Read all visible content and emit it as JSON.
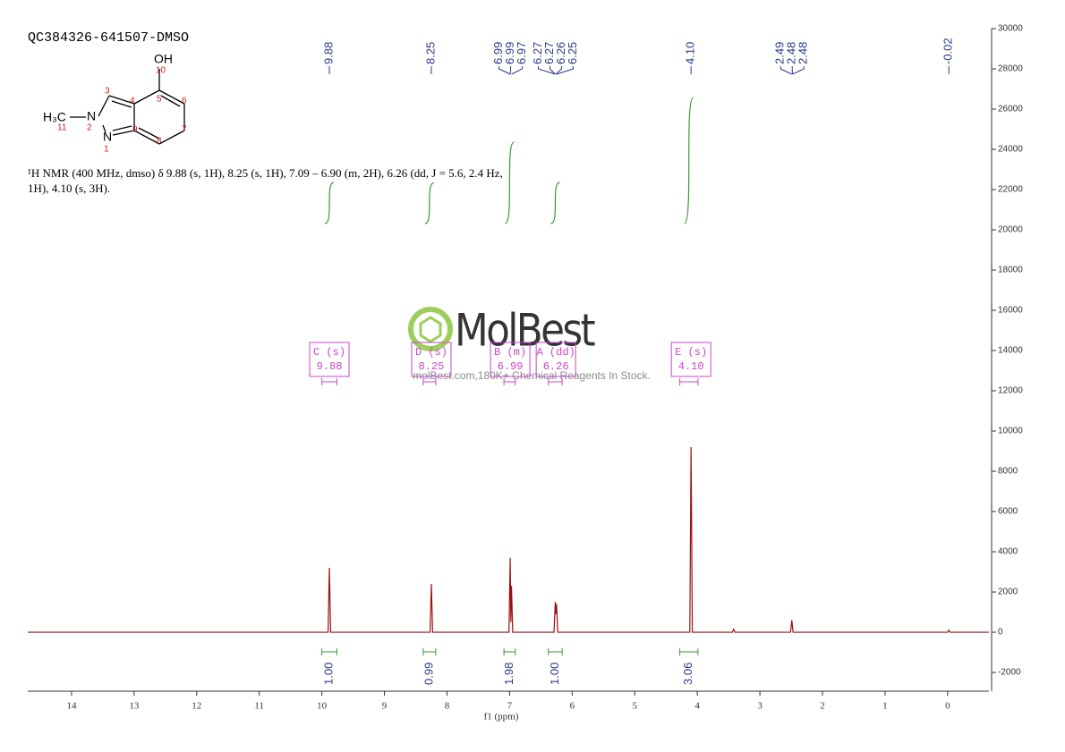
{
  "chart_data": {
    "type": "nmr",
    "title": "QC384326-641507-DMSO",
    "description_lines": [
      "¹H NMR (400 MHz, dmso) δ 9.88 (s, 1H), 8.25 (s, 1H), 7.09 – 6.90 (m, 2H), 6.26 (dd, J = 5.6, 2.4 Hz,",
      "1H), 4.10 (s, 3H)."
    ],
    "structure": {
      "labels": [
        "OH",
        "10",
        "5",
        "6",
        "3",
        "4",
        "H₃C",
        "11",
        "N",
        "2",
        "9",
        "7",
        "8",
        "N",
        "1"
      ]
    },
    "watermark": {
      "brand": "MolBest",
      "tagline": "molBest.com,180K+ Chemical Reagents In Stock."
    },
    "x_label": "f1 (ppm)",
    "xlim": [
      14.7,
      -0.66
    ],
    "xticks": [
      14,
      13,
      12,
      11,
      10,
      9,
      8,
      7,
      6,
      5,
      4,
      3,
      2,
      1,
      0
    ],
    "ylim": [
      -2930,
      30000
    ],
    "yticks": [
      -2000,
      0,
      2000,
      4000,
      6000,
      8000,
      10000,
      12000,
      14000,
      16000,
      18000,
      20000,
      22000,
      24000,
      26000,
      28000,
      30000
    ],
    "spectrum": {
      "color": "#9b1010",
      "x": [
        14.7,
        9.9,
        9.88,
        9.86,
        8.27,
        8.25,
        8.23,
        7.01,
        6.99,
        6.98,
        6.97,
        6.95,
        6.29,
        6.27,
        6.26,
        6.25,
        6.23,
        4.12,
        4.1,
        4.08,
        3.44,
        3.42,
        3.4,
        2.51,
        2.49,
        2.47,
        0.0,
        -0.02,
        -0.04,
        -0.66
      ],
      "values": [
        0,
        0,
        3200,
        0,
        0,
        2400,
        0,
        0,
        3700,
        500,
        2300,
        0,
        0,
        1500,
        900,
        1400,
        0,
        0,
        9200,
        0,
        0,
        150,
        0,
        0,
        600,
        0,
        0,
        100,
        0,
        0
      ]
    },
    "peak_color": "#2b3a8c",
    "peak_labels": [
      9.88,
      8.25,
      6.99,
      6.99,
      6.97,
      6.27,
      6.27,
      6.26,
      6.25,
      {
        "value": 4.1,
        "label": "4.10"
      },
      2.49,
      2.48,
      2.48,
      -0.02
    ],
    "integral_color": "#3a9a3a",
    "integrals": [
      {
        "range": [
          10.0,
          9.76
        ],
        "value": 1.0,
        "label": "1.00"
      },
      {
        "range": [
          8.38,
          8.18
        ],
        "value": 0.99,
        "label": "0.99"
      },
      {
        "range": [
          7.09,
          6.91
        ],
        "value": 1.98,
        "label": "1.98"
      },
      {
        "range": [
          6.38,
          6.16
        ],
        "value": 1.0,
        "label": "1.00"
      },
      {
        "range": [
          4.28,
          3.99
        ],
        "value": 3.06,
        "label": "3.06"
      }
    ],
    "multiplet_color": "#cc44cc",
    "multiplets": [
      {
        "name": "C (s)",
        "shift": 9.88
      },
      {
        "name": "D (s)",
        "shift": 8.25
      },
      {
        "name": "B (m)",
        "shift": 6.99
      },
      {
        "name": "A (dd)",
        "shift": 6.26
      },
      {
        "name": "E (s)",
        "shift": {
          "value": 4.1,
          "label": "4.10"
        }
      }
    ]
  }
}
